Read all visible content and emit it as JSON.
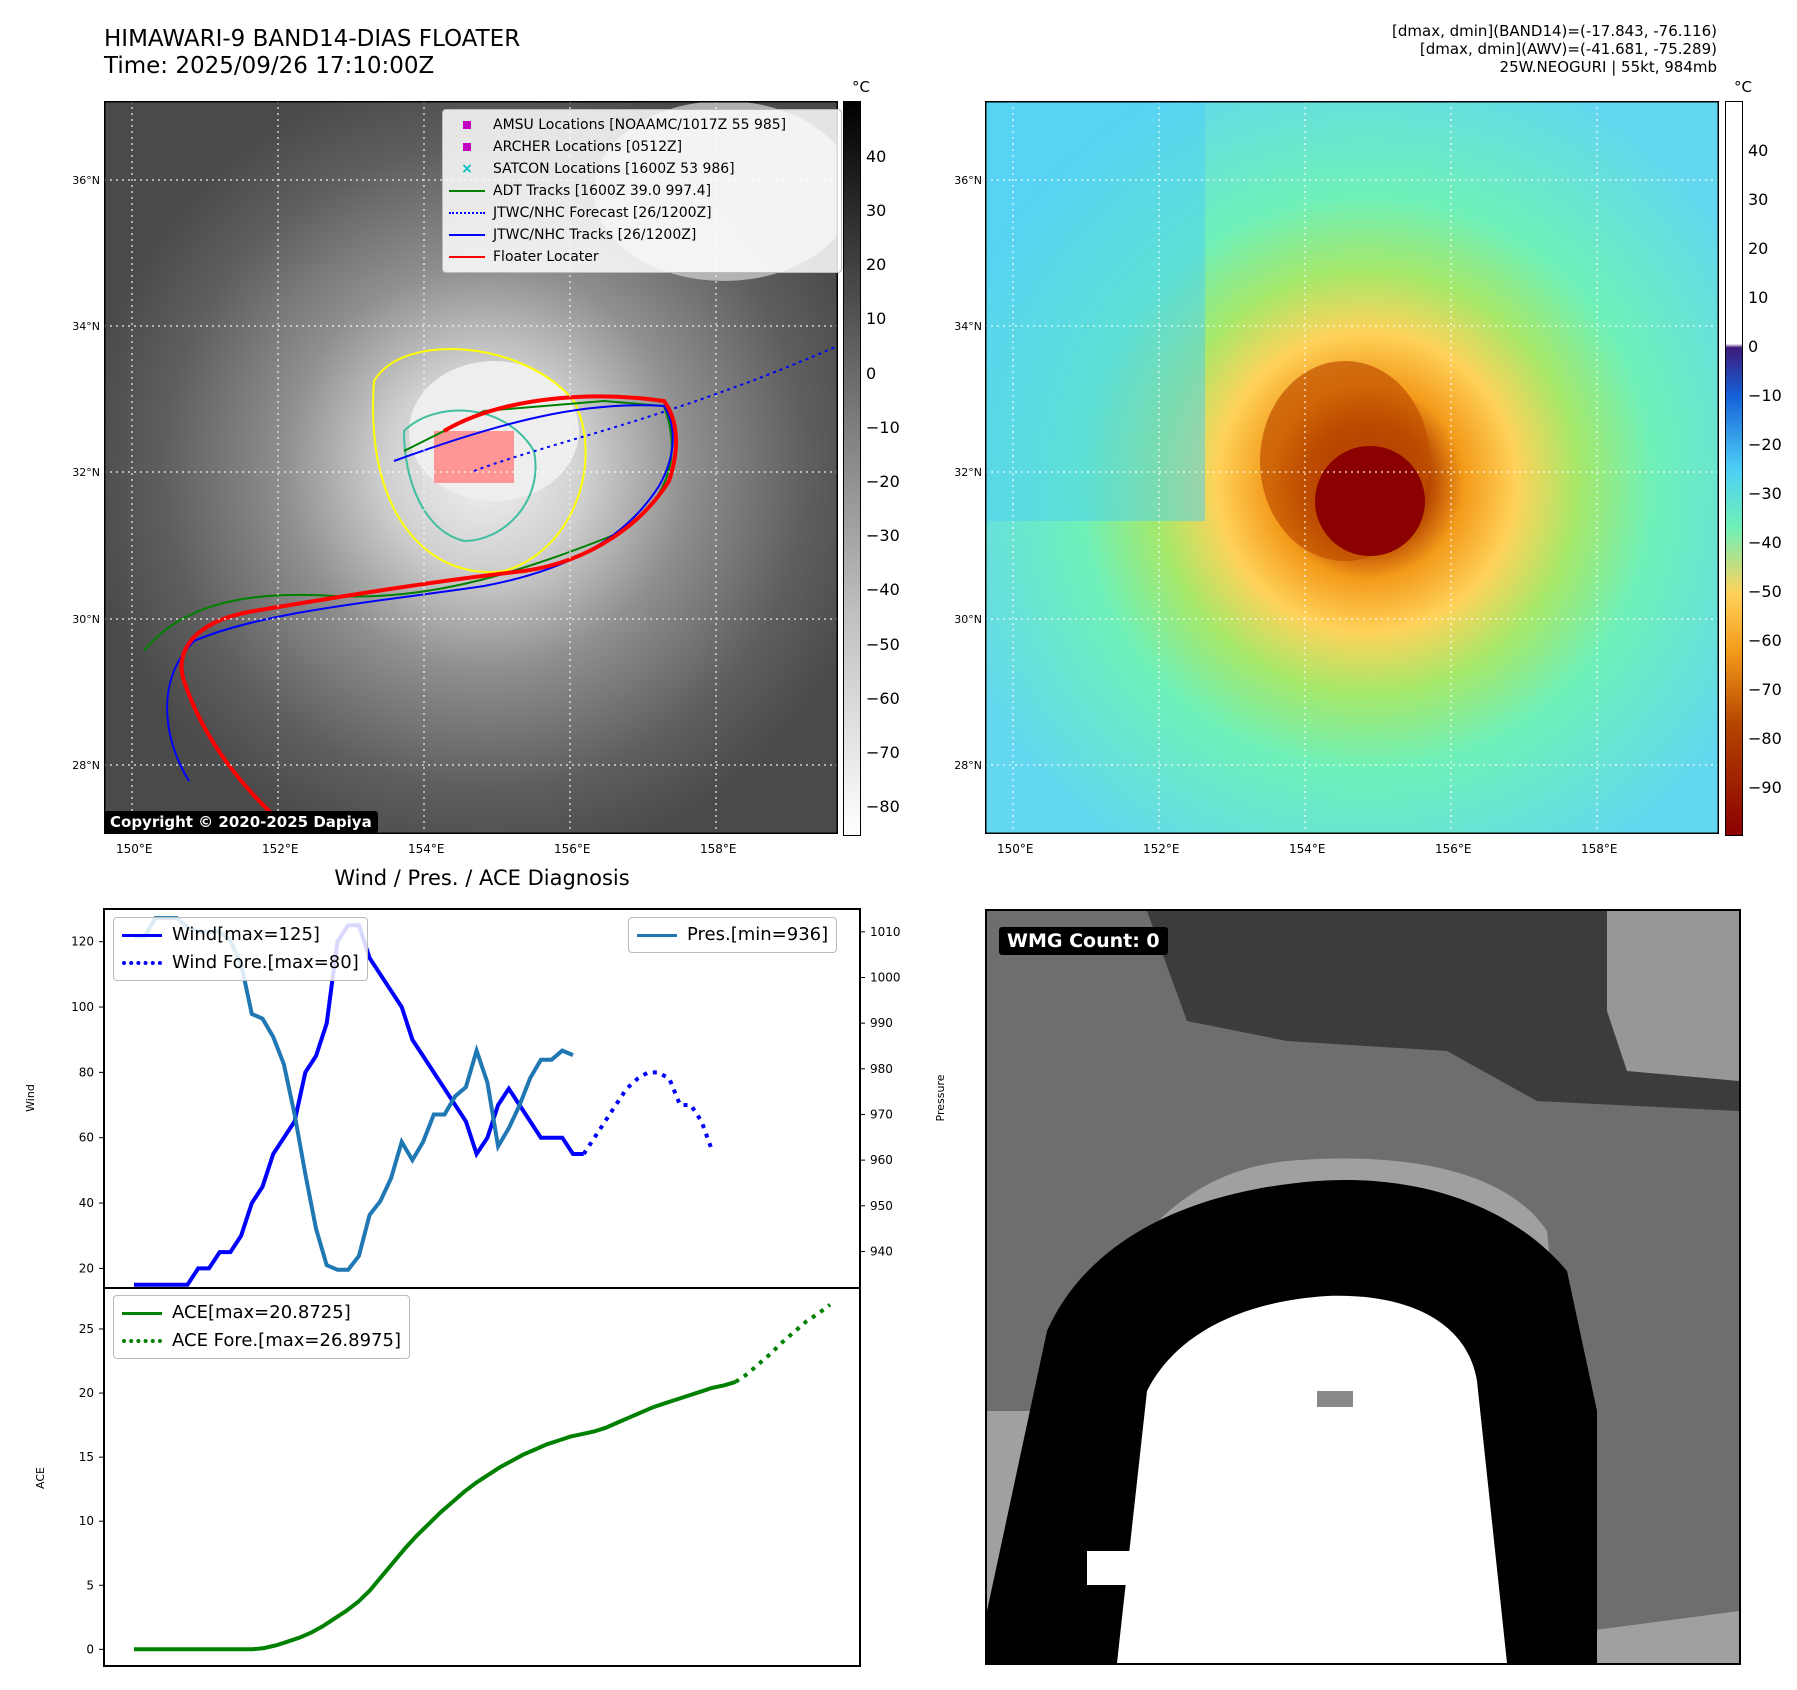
{
  "header": {
    "title_line1": "HIMAWARI-9 BAND14-DIAS FLOATER",
    "title_line2": "Time: 2025/09/26 17:10:00Z",
    "info_line1": "[dmax, dmin](BAND14)=(-17.843, -76.116)",
    "info_line2": "[dmax, dmin](AWV)=(-41.681, -75.289)",
    "info_line3": "25W.NEOGURI | 55kt, 984mb"
  },
  "map_panel": {
    "lat_labels": [
      "36°N",
      "34°N",
      "32°N",
      "30°N",
      "28°N"
    ],
    "lon_labels": [
      "150°E",
      "152°E",
      "154°E",
      "156°E",
      "158°E"
    ],
    "colorbar_unit": "°C",
    "colorbar_ticks": [
      "40",
      "30",
      "20",
      "10",
      "0",
      "−10",
      "−20",
      "−30",
      "−40",
      "−50",
      "−60",
      "−70",
      "−80"
    ],
    "copyright": "Copyright © 2020-2025 Dapiya",
    "legend": [
      {
        "label": "AMSU Locations [NOAAMC/1017Z 55 985]",
        "color": "#bf00bf",
        "marker": "square"
      },
      {
        "label": "ARCHER Locations [0512Z]",
        "color": "#bf00bf",
        "marker": "square"
      },
      {
        "label": "SATCON Locations [1600Z 53 986]",
        "color": "#00bfbf",
        "marker": "x"
      },
      {
        "label": "ADT Tracks [1600Z 39.0 997.4]",
        "color": "#008000",
        "marker": "line"
      },
      {
        "label": "JTWC/NHC Forecast [26/1200Z]",
        "color": "#0000ff",
        "marker": "dotted"
      },
      {
        "label": "JTWC/NHC Tracks [26/1200Z]",
        "color": "#0000ff",
        "marker": "line-dot"
      },
      {
        "label": "Floater Locater",
        "color": "#ff0000",
        "marker": "line"
      }
    ]
  },
  "awv_panel": {
    "lat_labels": [
      "36°N",
      "34°N",
      "32°N",
      "30°N",
      "28°N"
    ],
    "lon_labels": [
      "150°E",
      "152°E",
      "154°E",
      "156°E",
      "158°E"
    ],
    "colorbar_unit": "°C",
    "colorbar_ticks": [
      "40",
      "30",
      "20",
      "10",
      "0",
      "−10",
      "−20",
      "−30",
      "−40",
      "−50",
      "−60",
      "−70",
      "−80",
      "−90"
    ]
  },
  "wmg_panel": {
    "badge": "WMG Count: 0"
  },
  "chart_data": [
    {
      "type": "line",
      "title": "Wind / Pres. / ACE Diagnosis",
      "ylabel": "Wind",
      "y2label": "Pressure",
      "ylim": [
        14,
        130
      ],
      "y2lim": [
        932,
        1015
      ],
      "yticks": [
        20,
        40,
        60,
        80,
        100,
        120
      ],
      "y2ticks": [
        940,
        950,
        960,
        970,
        980,
        990,
        1000,
        1010
      ],
      "series": [
        {
          "name": "Wind[max=125]",
          "axis": "left",
          "color": "#0000ff",
          "style": "solid",
          "values": [
            15,
            15,
            15,
            15,
            15,
            15,
            20,
            20,
            25,
            25,
            30,
            40,
            45,
            55,
            60,
            65,
            80,
            85,
            95,
            120,
            125,
            125,
            115,
            110,
            105,
            100,
            90,
            85,
            80,
            75,
            70,
            65,
            55,
            60,
            70,
            75,
            70,
            65,
            60,
            60,
            60,
            55,
            55
          ]
        },
        {
          "name": "Wind Fore.[max=80]",
          "axis": "left",
          "color": "#0000ff",
          "style": "dotted",
          "start_index": 42,
          "values": [
            55,
            60,
            65,
            70,
            75,
            78,
            80,
            80,
            78,
            70,
            70,
            65,
            56
          ]
        },
        {
          "name": "Pres.[min=936]",
          "axis": "right",
          "color": "#1f77b4",
          "style": "solid",
          "start_index": 0,
          "values": [
            1009,
            1009,
            1013,
            1013,
            1013,
            1011,
            1010,
            1010,
            1010,
            1008,
            1003,
            992,
            991,
            987,
            981,
            970,
            957,
            945,
            937,
            936,
            936,
            939,
            948,
            951,
            956,
            964,
            960,
            964,
            970,
            970,
            974,
            976,
            984,
            977,
            963,
            967,
            972,
            978,
            982,
            982,
            984,
            983
          ]
        }
      ]
    },
    {
      "type": "line",
      "ylabel": "ACE",
      "ylim": [
        -1.3,
        28.2
      ],
      "yticks": [
        0,
        5,
        10,
        15,
        20,
        25
      ],
      "series": [
        {
          "name": "ACE[max=20.8725]",
          "color": "#008000",
          "style": "solid",
          "values": [
            0,
            0,
            0,
            0,
            0,
            0,
            0,
            0,
            0,
            0,
            0,
            0.1,
            0.3,
            0.6,
            0.9,
            1.3,
            1.8,
            2.4,
            3.0,
            3.7,
            4.6,
            5.7,
            6.8,
            7.9,
            8.9,
            9.8,
            10.7,
            11.5,
            12.3,
            13.0,
            13.6,
            14.2,
            14.7,
            15.2,
            15.6,
            16.0,
            16.3,
            16.6,
            16.8,
            17.0,
            17.3,
            17.7,
            18.1,
            18.5,
            18.9,
            19.2,
            19.5,
            19.8,
            20.1,
            20.4,
            20.6,
            20.87
          ]
        },
        {
          "name": "ACE Fore.[max=26.8975]",
          "color": "#008000",
          "style": "dotted",
          "start_index": 51,
          "values": [
            20.87,
            21.5,
            22.3,
            23.1,
            24.0,
            24.8,
            25.6,
            26.2,
            26.9
          ]
        }
      ]
    }
  ]
}
